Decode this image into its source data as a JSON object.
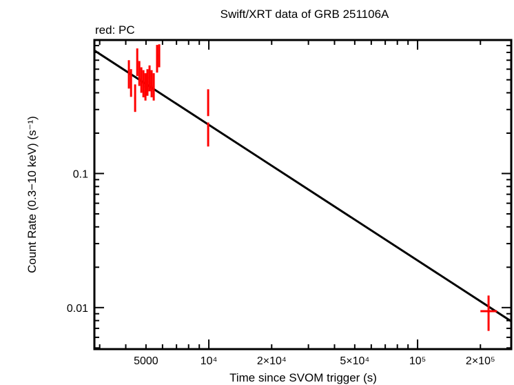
{
  "chart_data": {
    "type": "scatter",
    "title": "Swift/XRT data of GRB 251106A",
    "subtitle": "red: PC",
    "xlabel": "Time since SVOM trigger (s)",
    "ylabel": "Count Rate (0.3−10 keV) (s⁻¹)",
    "xscale": "log",
    "yscale": "log",
    "xlim": [
      2830,
      281000
    ],
    "ylim": [
      0.0049,
      0.99
    ],
    "x_ticks": [
      {
        "value": 5000,
        "label": "5000"
      },
      {
        "value": 10000,
        "label": "10⁴"
      },
      {
        "value": 20000,
        "label": "2×10⁴"
      },
      {
        "value": 50000,
        "label": "5×10⁴"
      },
      {
        "value": 100000,
        "label": "10⁵"
      },
      {
        "value": 200000,
        "label": "2×10⁵"
      }
    ],
    "y_ticks": [
      {
        "value": 0.1,
        "label": "0.1"
      },
      {
        "value": 0.01,
        "label": "0.01"
      }
    ],
    "grid": false,
    "series": [
      {
        "name": "PC",
        "color": "#ff0000",
        "points": [
          {
            "x": 4140,
            "y": 0.552,
            "ylo": 0.43,
            "yhi": 0.7,
            "xlo": 4100,
            "xhi": 4180
          },
          {
            "x": 4240,
            "y": 0.502,
            "ylo": 0.373,
            "yhi": 0.6,
            "xlo": 4200,
            "xhi": 4280
          },
          {
            "x": 4435,
            "y": 0.365,
            "ylo": 0.288,
            "yhi": 0.462,
            "xlo": 4390,
            "xhi": 4480
          },
          {
            "x": 4540,
            "y": 0.692,
            "ylo": 0.533,
            "yhi": 0.857,
            "xlo": 4500,
            "xhi": 4590
          },
          {
            "x": 4645,
            "y": 0.566,
            "ylo": 0.45,
            "yhi": 0.69,
            "xlo": 4600,
            "xhi": 4690
          },
          {
            "x": 4750,
            "y": 0.502,
            "ylo": 0.4,
            "yhi": 0.62,
            "xlo": 4700,
            "xhi": 4800
          },
          {
            "x": 4860,
            "y": 0.473,
            "ylo": 0.37,
            "yhi": 0.59,
            "xlo": 4810,
            "xhi": 4910
          },
          {
            "x": 4970,
            "y": 0.446,
            "ylo": 0.35,
            "yhi": 0.56,
            "xlo": 4920,
            "xhi": 5020
          },
          {
            "x": 5080,
            "y": 0.485,
            "ylo": 0.38,
            "yhi": 0.6,
            "xlo": 5030,
            "xhi": 5130
          },
          {
            "x": 5200,
            "y": 0.52,
            "ylo": 0.41,
            "yhi": 0.64,
            "xlo": 5150,
            "xhi": 5250
          },
          {
            "x": 5320,
            "y": 0.473,
            "ylo": 0.37,
            "yhi": 0.59,
            "xlo": 5270,
            "xhi": 5370
          },
          {
            "x": 5445,
            "y": 0.446,
            "ylo": 0.35,
            "yhi": 0.56,
            "xlo": 5390,
            "xhi": 5500
          },
          {
            "x": 5650,
            "y": 0.734,
            "ylo": 0.566,
            "yhi": 0.91,
            "xlo": 5600,
            "xhi": 5700
          },
          {
            "x": 5785,
            "y": 0.761,
            "ylo": 0.62,
            "yhi": 0.92,
            "xlo": 5730,
            "xhi": 5840
          },
          {
            "x": 9925,
            "y": 0.348,
            "ylo": 0.268,
            "yhi": 0.425,
            "xlo": 9850,
            "xhi": 10000
          },
          {
            "x": 9925,
            "y": 0.201,
            "ylo": 0.159,
            "yhi": 0.24,
            "xlo": 9850,
            "xhi": 10000
          },
          {
            "x": 218800,
            "y": 0.0094,
            "ylo": 0.0067,
            "yhi": 0.0123,
            "xlo": 200000,
            "xhi": 240000
          }
        ]
      }
    ],
    "model": {
      "type": "power-law",
      "color": "#000000",
      "points": [
        {
          "x": 2830,
          "y": 0.827
        },
        {
          "x": 281000,
          "y": 0.0079
        }
      ]
    }
  }
}
